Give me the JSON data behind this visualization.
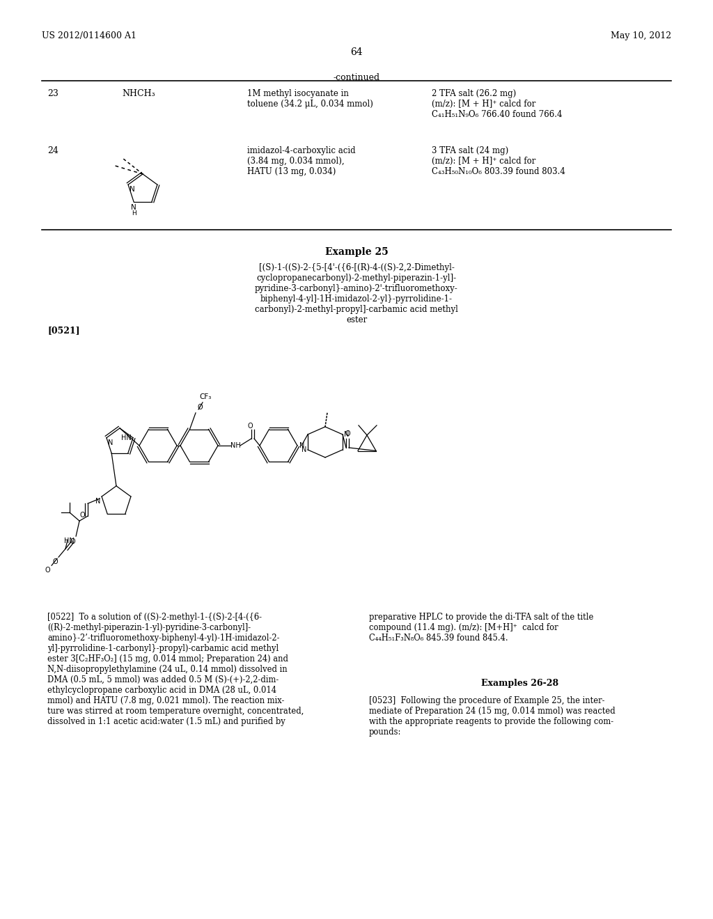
{
  "header_left": "US 2012/0114600 A1",
  "header_right": "May 10, 2012",
  "page_number": "64",
  "continued_label": "-continued",
  "row23_num": "23",
  "row23_struct": "NHCH₃",
  "row23_reagent": "1M methyl isocyanate in\ntoluene (34.2 μL, 0.034 mmol)",
  "row23_result": "2 TFA salt (26.2 mg)\n(m/z): [M + H]⁺ calcd for\nC₄₁H₅₁N₉O₆ 766.40 found 766.4",
  "row24_num": "24",
  "row24_reagent": "imidazol-4-carboxylic acid\n(3.84 mg, 0.034 mmol),\nHATU (13 mg, 0.034)",
  "row24_result": "3 TFA salt (24 mg)\n(m/z): [M + H]⁺ calcd for\nC₄₃H₅₀N₁₀O₆ 803.39 found 803.4",
  "example25_title": "Example 25",
  "example25_name": "[(S)-1-((S)-2-{5-[4'-({6-[(R)-4-((S)-2,2-Dimethyl-\ncyclopropanecarbonyl)-2-methyl-piperazin-1-yl]-\npyridine-3-carbonyl}-amino)-2'-trifluoromethoxy-\nbiphenyl-4-yl]-1H-imidazol-2-yl}-pyrrolidine-1-\ncarbonyl)-2-methyl-propyl]-carbamic acid methyl\nester",
  "para0521": "[0521]",
  "para0522_left": "[0522]  To a solution of ((S)-2-methyl-1-{(S)-2-[4-({6-\n((R)-2-methyl-piperazin-1-yl)-pyridine-3-carbonyl]-\namino}-2’-trifluoromethoxy-biphenyl-4-yl)-1H-imidazol-2-\nyl]-pyrrolidine-1-carbonyl}-propyl)-carbamic acid methyl\nester 3[C₂HF₃O₂] (15 mg, 0.014 mmol; Preparation 24) and\nN,N-diisopropylethylamine (24 uL, 0.14 mmol) dissolved in\nDMA (0.5 mL, 5 mmol) was added 0.5 M (S)-(+)-2,2-dim-\nethylcyclopropane carboxylic acid in DMA (28 uL, 0.014\nmmol) and HATU (7.8 mg, 0.021 mmol). The reaction mix-\nture was stirred at room temperature overnight, concentrated,\ndissolved in 1:1 acetic acid:water (1.5 mL) and purified by",
  "para0522_right": "preparative HPLC to provide the di-TFA salt of the title\ncompound (11.4 mg). (m/z): [M+H]⁺  calcd for\nC₄₄H₅₁F₃N₈O₆ 845.39 found 845.4.",
  "examples2628_title": "Examples 26-28",
  "para0523": "[0523]  Following the procedure of Example 25, the inter-\nmediate of Preparation 24 (15 mg, 0.014 mmol) was reacted\nwith the appropriate reagents to provide the following com-\npounds:",
  "bg_color": "#ffffff",
  "text_color": "#000000",
  "line_color": "#000000"
}
